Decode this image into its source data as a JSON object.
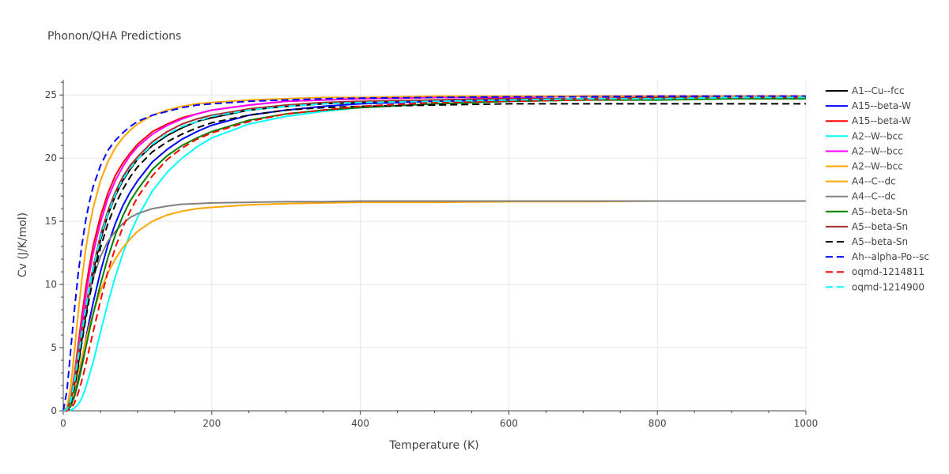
{
  "chart_data": {
    "type": "line",
    "title": "Phonon/QHA Predictions",
    "xlabel": "Temperature (K)",
    "ylabel": "Cv (J/K/mol)",
    "xlim": [
      0,
      1000
    ],
    "ylim": [
      0,
      26.2
    ],
    "xticks": [
      0,
      200,
      400,
      600,
      800,
      1000
    ],
    "yticks": [
      0,
      5,
      10,
      15,
      20,
      25
    ],
    "grid": true,
    "legend_position": "right",
    "x": [
      0,
      5,
      10,
      15,
      20,
      25,
      30,
      35,
      40,
      50,
      60,
      70,
      80,
      90,
      100,
      120,
      140,
      160,
      180,
      200,
      250,
      300,
      350,
      400,
      500,
      600,
      700,
      800,
      900,
      1000
    ],
    "series": [
      {
        "name": "A1--Cu--fcc",
        "color": "#000000",
        "dash": "solid",
        "values": [
          0,
          0.08,
          0.6,
          1.8,
          3.6,
          5.6,
          7.5,
          9.3,
          10.9,
          13.5,
          15.5,
          17.0,
          18.2,
          19.1,
          19.9,
          21.0,
          21.8,
          22.4,
          22.9,
          23.2,
          23.8,
          24.1,
          24.3,
          24.4,
          24.6,
          24.7,
          24.7,
          24.8,
          24.8,
          24.8
        ]
      },
      {
        "name": "A15--beta-W",
        "color": "#0000ff",
        "dash": "solid",
        "values": [
          0,
          0.05,
          0.4,
          1.2,
          2.5,
          4.0,
          5.6,
          7.1,
          8.5,
          11.0,
          13.1,
          14.8,
          16.2,
          17.3,
          18.2,
          19.7,
          20.7,
          21.5,
          22.1,
          22.6,
          23.4,
          23.8,
          24.1,
          24.3,
          24.5,
          24.6,
          24.7,
          24.7,
          24.8,
          24.8
        ]
      },
      {
        "name": "A15--beta-W",
        "color": "#ff0000",
        "dash": "solid",
        "values": [
          0,
          0.15,
          1.0,
          2.9,
          5.2,
          7.5,
          9.6,
          11.4,
          13.0,
          15.4,
          17.2,
          18.6,
          19.6,
          20.4,
          21.1,
          22.1,
          22.7,
          23.2,
          23.5,
          23.8,
          24.2,
          24.5,
          24.6,
          24.7,
          24.8,
          24.8,
          24.9,
          24.9,
          24.9,
          24.9
        ]
      },
      {
        "name": "A2--W--bcc",
        "color": "#00ffff",
        "dash": "solid",
        "values": [
          0,
          0.0,
          0.05,
          0.2,
          0.5,
          1.0,
          1.8,
          2.8,
          3.8,
          6.2,
          8.5,
          10.6,
          12.4,
          14.0,
          15.3,
          17.4,
          18.9,
          20.0,
          20.9,
          21.6,
          22.7,
          23.3,
          23.7,
          24.0,
          24.3,
          24.5,
          24.6,
          24.7,
          24.7,
          24.8
        ]
      },
      {
        "name": "A2--W--bcc",
        "color": "#ff00ff",
        "dash": "solid",
        "values": [
          0,
          0.12,
          0.9,
          2.6,
          4.8,
          7.0,
          9.0,
          10.8,
          12.4,
          14.9,
          16.8,
          18.2,
          19.3,
          20.2,
          20.9,
          21.9,
          22.6,
          23.1,
          23.5,
          23.8,
          24.2,
          24.5,
          24.6,
          24.7,
          24.8,
          24.8,
          24.9,
          24.9,
          24.9,
          24.9
        ]
      },
      {
        "name": "A2--W--bcc",
        "color": "#ffa500",
        "dash": "solid",
        "values": [
          0,
          0.3,
          1.9,
          4.7,
          7.7,
          10.4,
          12.7,
          14.5,
          16.0,
          18.2,
          19.7,
          20.8,
          21.6,
          22.2,
          22.7,
          23.4,
          23.8,
          24.1,
          24.3,
          24.4,
          24.6,
          24.7,
          24.8,
          24.8,
          24.9,
          24.9,
          24.9,
          24.9,
          24.9,
          24.9
        ]
      },
      {
        "name": "A4--C--dc",
        "color": "#ffa500",
        "dash": "solid",
        "values": [
          0,
          0.1,
          0.6,
          1.6,
          2.9,
          4.2,
          5.5,
          6.7,
          7.7,
          9.5,
          10.9,
          12.0,
          12.9,
          13.6,
          14.2,
          15.0,
          15.5,
          15.8,
          16.0,
          16.1,
          16.3,
          16.4,
          16.45,
          16.5,
          16.5,
          16.55,
          16.55,
          16.6,
          16.6,
          16.6
        ]
      },
      {
        "name": "A4--C--dc",
        "color": "#808080",
        "dash": "solid",
        "values": [
          0,
          0.15,
          1.0,
          2.7,
          4.6,
          6.4,
          8.0,
          9.4,
          10.5,
          12.2,
          13.4,
          14.2,
          14.8,
          15.3,
          15.6,
          16.0,
          16.2,
          16.35,
          16.4,
          16.45,
          16.5,
          16.55,
          16.55,
          16.6,
          16.6,
          16.6,
          16.6,
          16.6,
          16.6,
          16.6
        ]
      },
      {
        "name": "A5--beta-Sn",
        "color": "#008000",
        "dash": "solid",
        "values": [
          0,
          0.05,
          0.35,
          1.1,
          2.2,
          3.5,
          4.9,
          6.3,
          7.6,
          10.0,
          12.1,
          13.9,
          15.4,
          16.6,
          17.5,
          19.1,
          20.2,
          21.0,
          21.6,
          22.1,
          23.0,
          23.5,
          23.8,
          24.0,
          24.3,
          24.5,
          24.6,
          24.6,
          24.7,
          24.7
        ]
      },
      {
        "name": "A5--beta-Sn",
        "color": "#a52a2a",
        "dash": "solid",
        "values": [
          0,
          0.1,
          0.8,
          2.3,
          4.2,
          6.2,
          8.1,
          9.8,
          11.3,
          13.9,
          15.8,
          17.3,
          18.5,
          19.4,
          20.1,
          21.3,
          22.1,
          22.7,
          23.1,
          23.4,
          23.9,
          24.2,
          24.4,
          24.5,
          24.6,
          24.7,
          24.7,
          24.8,
          24.8,
          24.8
        ]
      },
      {
        "name": "A5--beta-Sn",
        "color": "#000000",
        "dash": "dash",
        "values": [
          0,
          0.08,
          0.6,
          1.8,
          3.5,
          5.4,
          7.2,
          8.9,
          10.4,
          12.9,
          14.8,
          16.3,
          17.5,
          18.5,
          19.3,
          20.5,
          21.3,
          21.9,
          22.4,
          22.8,
          23.4,
          23.8,
          24.0,
          24.1,
          24.2,
          24.3,
          24.3,
          24.3,
          24.3,
          24.3
        ]
      },
      {
        "name": "Ah--alpha-Po--sc",
        "color": "#0000ff",
        "dash": "dash",
        "values": [
          0,
          1.6,
          4.8,
          8.0,
          10.8,
          13.1,
          15.0,
          16.5,
          17.7,
          19.4,
          20.6,
          21.4,
          22.0,
          22.5,
          22.9,
          23.4,
          23.7,
          24.0,
          24.2,
          24.3,
          24.5,
          24.6,
          24.7,
          24.75,
          24.8,
          24.85,
          24.85,
          24.9,
          24.9,
          24.9
        ]
      },
      {
        "name": "oqmd-1214811",
        "color": "#ff0000",
        "dash": "dash",
        "values": [
          0,
          0.0,
          0.15,
          0.6,
          1.4,
          2.4,
          3.6,
          4.9,
          6.2,
          8.7,
          11.0,
          12.9,
          14.5,
          15.8,
          16.9,
          18.6,
          19.9,
          20.8,
          21.5,
          22.0,
          22.9,
          23.5,
          23.8,
          24.1,
          24.4,
          24.5,
          24.6,
          24.7,
          24.8,
          24.8
        ]
      },
      {
        "name": "oqmd-1214900",
        "color": "#00ffff",
        "dash": "dash",
        "values": [
          0,
          0.1,
          0.75,
          2.2,
          4.1,
          6.1,
          8.0,
          9.7,
          11.2,
          13.7,
          15.6,
          17.1,
          18.3,
          19.2,
          19.9,
          21.1,
          21.9,
          22.5,
          22.9,
          23.3,
          23.8,
          24.1,
          24.3,
          24.4,
          24.5,
          24.6,
          24.7,
          24.7,
          24.8,
          24.8
        ]
      }
    ]
  }
}
